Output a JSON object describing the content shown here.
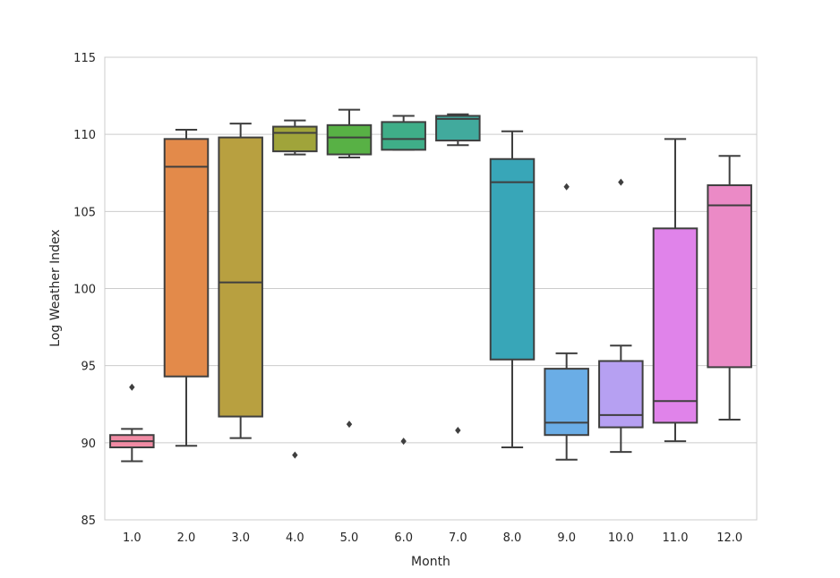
{
  "chart_data": {
    "type": "box",
    "title": "",
    "xlabel": "Month",
    "ylabel": "Log Weather Index",
    "ylim": [
      85,
      115
    ],
    "yticks": [
      85,
      90,
      95,
      100,
      105,
      110,
      115
    ],
    "grid": true,
    "categories": [
      "1.0",
      "2.0",
      "3.0",
      "4.0",
      "5.0",
      "6.0",
      "7.0",
      "8.0",
      "9.0",
      "10.0",
      "11.0",
      "12.0"
    ],
    "colors": [
      "#f08ba4",
      "#e38a4a",
      "#b8a040",
      "#a0a43a",
      "#58b145",
      "#3fae88",
      "#41aa9d",
      "#38a6b8",
      "#6aade6",
      "#b6a0f2",
      "#e083ea",
      "#eb8ac6"
    ],
    "boxes": [
      {
        "whislo": 88.8,
        "q1": 89.7,
        "med": 90.1,
        "q3": 90.5,
        "whishi": 90.9,
        "fliers": [
          93.6
        ]
      },
      {
        "whislo": 89.8,
        "q1": 94.3,
        "med": 107.9,
        "q3": 109.7,
        "whishi": 110.3,
        "fliers": []
      },
      {
        "whislo": 90.3,
        "q1": 91.7,
        "med": 100.4,
        "q3": 109.8,
        "whishi": 110.7,
        "fliers": []
      },
      {
        "whislo": 108.7,
        "q1": 108.9,
        "med": 110.1,
        "q3": 110.5,
        "whishi": 110.9,
        "fliers": [
          89.2
        ]
      },
      {
        "whislo": 108.5,
        "q1": 108.7,
        "med": 109.8,
        "q3": 110.6,
        "whishi": 111.6,
        "fliers": [
          91.2
        ]
      },
      {
        "whislo": 109.0,
        "q1": 109.0,
        "med": 109.7,
        "q3": 110.8,
        "whishi": 111.2,
        "fliers": [
          90.1
        ]
      },
      {
        "whislo": 109.3,
        "q1": 109.6,
        "med": 111.0,
        "q3": 111.2,
        "whishi": 111.3,
        "fliers": [
          90.8
        ]
      },
      {
        "whislo": 89.7,
        "q1": 95.4,
        "med": 106.9,
        "q3": 108.4,
        "whishi": 110.2,
        "fliers": []
      },
      {
        "whislo": 88.9,
        "q1": 90.5,
        "med": 91.3,
        "q3": 94.8,
        "whishi": 95.8,
        "fliers": [
          106.6
        ]
      },
      {
        "whislo": 89.4,
        "q1": 91.0,
        "med": 91.8,
        "q3": 95.3,
        "whishi": 96.3,
        "fliers": [
          106.9
        ]
      },
      {
        "whislo": 90.1,
        "q1": 91.3,
        "med": 92.7,
        "q3": 103.9,
        "whishi": 109.7,
        "fliers": []
      },
      {
        "whislo": 91.5,
        "q1": 94.9,
        "med": 105.4,
        "q3": 106.7,
        "whishi": 108.6,
        "fliers": []
      }
    ]
  }
}
